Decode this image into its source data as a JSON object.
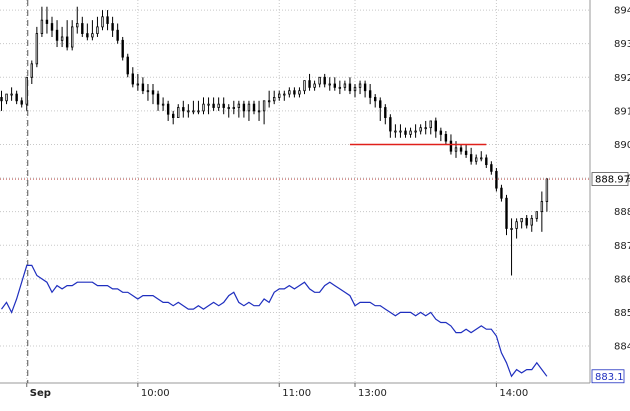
{
  "colors": {
    "grid": "#c8c8c8",
    "candle": "#000000",
    "reference_line": "#e0201b",
    "last_price_line": "#c0504d",
    "secondary_series": "#1f2fbf"
  },
  "chart_data": {
    "type": "candlestick",
    "title": "",
    "xlabel": "",
    "ylabel": "",
    "ylim": [
      882.9,
      894.3
    ],
    "y_ticks": [
      884,
      885,
      886,
      887,
      888,
      889,
      890,
      891,
      892,
      893,
      894
    ],
    "x_ticks": [
      {
        "label": "Sep",
        "bar": 5,
        "bold": true
      },
      {
        "label": "10:00",
        "bar": 27,
        "bold": false
      },
      {
        "label": "11:00",
        "bar": 55,
        "bold": false
      },
      {
        "label": "13:00",
        "bar": 70,
        "bold": false
      },
      {
        "label": "14:00",
        "bar": 98,
        "bold": false
      }
    ],
    "session_divider_bar": 5,
    "grid": true,
    "last_price": 888.97,
    "last_price_label": "888.97",
    "reference_line": {
      "y": 890.0,
      "from_bar": 69,
      "to_bar": 96
    },
    "candles": {
      "open": [
        891.4,
        891.3,
        891.5,
        891.5,
        891.3,
        891.2,
        892.0,
        892.4,
        893.3,
        893.7,
        893.6,
        893.4,
        893.1,
        893.2,
        892.9,
        893.5,
        893.6,
        893.3,
        893.2,
        893.3,
        893.5,
        893.8,
        893.6,
        893.4,
        893.1,
        892.6,
        892.1,
        891.8,
        891.8,
        891.6,
        891.6,
        891.5,
        891.2,
        891.2,
        890.9,
        890.8,
        891.1,
        891.0,
        891.0,
        891.0,
        891.0,
        891.2,
        891.2,
        891.1,
        891.2,
        891.1,
        891.1,
        891.1,
        891.2,
        891.0,
        891.2,
        891.0,
        891.0,
        891.3,
        891.3,
        891.4,
        891.5,
        891.5,
        891.6,
        891.5,
        891.6,
        891.9,
        891.7,
        891.8,
        892.0,
        891.8,
        891.8,
        891.7,
        891.7,
        891.8,
        891.6,
        891.7,
        891.8,
        891.6,
        891.4,
        891.3,
        891.1,
        890.8,
        890.4,
        890.4,
        890.4,
        890.3,
        890.4,
        890.4,
        890.5,
        890.5,
        890.7,
        890.4,
        890.3,
        890.1,
        889.8,
        889.9,
        889.8,
        889.7,
        889.5,
        889.6,
        889.6,
        889.4,
        889.2,
        888.7,
        888.4,
        887.5,
        887.5,
        887.7,
        887.8,
        887.6,
        887.8,
        888.0,
        888.3
      ],
      "high": [
        891.6,
        891.5,
        891.7,
        891.6,
        891.4,
        891.8,
        892.5,
        893.5,
        894.1,
        894.1,
        893.8,
        893.7,
        893.5,
        893.7,
        893.7,
        894.1,
        893.8,
        893.6,
        893.7,
        893.8,
        894.0,
        894.0,
        893.8,
        893.6,
        893.2,
        892.7,
        892.3,
        892.1,
        892.0,
        891.8,
        891.8,
        891.6,
        891.4,
        891.3,
        891.0,
        891.2,
        891.3,
        891.2,
        891.3,
        891.3,
        891.4,
        891.4,
        891.4,
        891.4,
        891.4,
        891.2,
        891.3,
        891.3,
        891.3,
        891.3,
        891.3,
        891.3,
        891.3,
        891.6,
        891.6,
        891.6,
        891.6,
        891.7,
        891.7,
        891.7,
        891.9,
        892.1,
        891.9,
        892.0,
        892.1,
        892.0,
        892.0,
        891.9,
        891.9,
        892.0,
        891.8,
        891.9,
        891.9,
        891.8,
        891.5,
        891.4,
        891.2,
        890.9,
        890.6,
        890.6,
        890.5,
        890.5,
        890.6,
        890.6,
        890.7,
        890.7,
        890.8,
        890.5,
        890.4,
        890.3,
        890.1,
        890.0,
        890.0,
        889.9,
        889.7,
        889.8,
        889.7,
        889.5,
        889.3,
        888.8,
        888.5,
        887.8,
        887.8,
        887.8,
        887.9,
        887.9,
        888.0,
        888.6,
        889.0
      ],
      "low": [
        891.0,
        891.2,
        891.3,
        891.2,
        891.1,
        891.0,
        891.8,
        892.3,
        893.2,
        893.3,
        893.2,
        892.9,
        892.9,
        892.8,
        892.8,
        893.3,
        893.2,
        893.1,
        893.1,
        893.2,
        893.4,
        893.4,
        893.2,
        893.0,
        892.5,
        892.0,
        891.7,
        891.6,
        891.5,
        891.3,
        891.2,
        891.0,
        891.0,
        890.7,
        890.6,
        890.8,
        890.8,
        890.8,
        890.9,
        890.9,
        890.9,
        890.9,
        891.0,
        891.0,
        890.9,
        890.8,
        890.9,
        890.8,
        890.8,
        890.7,
        890.9,
        890.7,
        890.6,
        891.1,
        891.2,
        891.3,
        891.3,
        891.4,
        891.4,
        891.4,
        891.5,
        891.6,
        891.6,
        891.7,
        891.7,
        891.6,
        891.6,
        891.5,
        891.6,
        891.5,
        891.4,
        891.5,
        891.4,
        891.2,
        891.1,
        890.7,
        890.6,
        890.2,
        890.2,
        890.2,
        890.2,
        890.2,
        890.2,
        890.3,
        890.3,
        890.3,
        890.2,
        890.1,
        890.0,
        889.7,
        889.6,
        889.7,
        889.6,
        889.4,
        889.4,
        889.5,
        889.3,
        889.1,
        888.6,
        888.3,
        887.3,
        886.1,
        887.2,
        887.5,
        887.5,
        887.4,
        887.7,
        887.4,
        888.0
      ],
      "close": [
        891.3,
        891.5,
        891.5,
        891.3,
        891.2,
        892.0,
        892.4,
        893.3,
        893.7,
        893.6,
        893.4,
        893.1,
        893.2,
        892.9,
        893.5,
        893.6,
        893.3,
        893.2,
        893.3,
        893.5,
        893.8,
        893.6,
        893.4,
        893.1,
        892.6,
        892.1,
        891.8,
        891.8,
        891.6,
        891.6,
        891.5,
        891.2,
        891.2,
        890.9,
        890.8,
        891.1,
        891.0,
        891.0,
        891.0,
        891.0,
        891.2,
        891.2,
        891.1,
        891.2,
        891.1,
        891.1,
        891.1,
        891.2,
        891.0,
        891.2,
        891.0,
        891.0,
        891.3,
        891.3,
        891.4,
        891.5,
        891.5,
        891.6,
        891.5,
        891.6,
        891.9,
        891.7,
        891.8,
        892.0,
        891.8,
        891.8,
        891.7,
        891.7,
        891.8,
        891.6,
        891.7,
        891.8,
        891.6,
        891.4,
        891.3,
        891.1,
        890.8,
        890.4,
        890.4,
        890.4,
        890.3,
        890.4,
        890.4,
        890.5,
        890.5,
        890.7,
        890.4,
        890.3,
        890.1,
        889.8,
        889.9,
        889.8,
        889.7,
        889.5,
        889.6,
        889.6,
        889.4,
        889.2,
        888.7,
        888.4,
        887.5,
        887.5,
        887.7,
        887.8,
        887.6,
        887.8,
        888.0,
        888.3,
        888.97
      ]
    },
    "series": [
      {
        "last_value_label": "883.1",
        "values": [
          885.1,
          885.3,
          885.0,
          885.4,
          885.9,
          886.4,
          886.4,
          886.1,
          886.0,
          885.9,
          885.6,
          885.8,
          885.7,
          885.8,
          885.8,
          885.9,
          885.9,
          885.9,
          885.9,
          885.8,
          885.8,
          885.8,
          885.7,
          885.7,
          885.6,
          885.6,
          885.5,
          885.4,
          885.5,
          885.5,
          885.5,
          885.4,
          885.3,
          885.3,
          885.2,
          885.3,
          885.2,
          885.1,
          885.1,
          885.2,
          885.1,
          885.2,
          885.3,
          885.2,
          885.3,
          885.5,
          885.6,
          885.3,
          885.2,
          885.3,
          885.2,
          885.2,
          885.4,
          885.3,
          885.6,
          885.7,
          885.7,
          885.8,
          885.7,
          885.8,
          885.9,
          885.7,
          885.6,
          885.6,
          885.8,
          885.9,
          885.8,
          885.7,
          885.6,
          885.5,
          885.2,
          885.3,
          885.3,
          885.3,
          885.2,
          885.2,
          885.1,
          885.0,
          884.9,
          885.0,
          885.0,
          885.0,
          884.9,
          885.0,
          884.9,
          885.0,
          884.8,
          884.7,
          884.7,
          884.6,
          884.4,
          884.4,
          884.5,
          884.4,
          884.5,
          884.6,
          884.5,
          884.5,
          884.3,
          883.8,
          883.5,
          883.1,
          883.3,
          883.2,
          883.3,
          883.3,
          883.5,
          883.3,
          883.1
        ]
      }
    ]
  }
}
